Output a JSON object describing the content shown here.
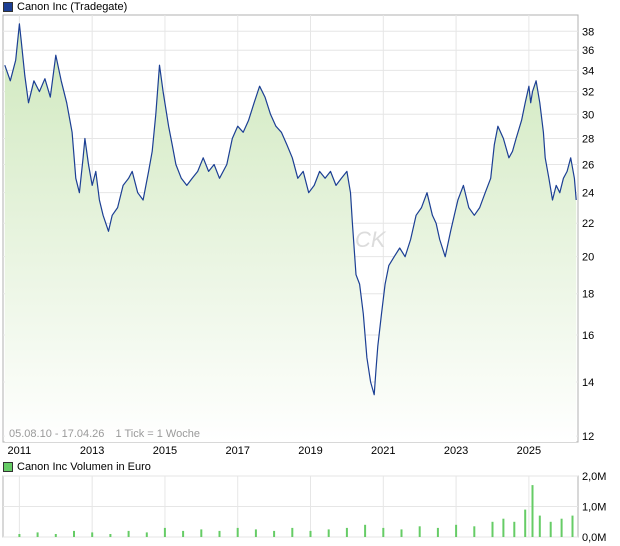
{
  "legend": {
    "price_label": "Canon Inc (Tradegate)",
    "price_color": "#1c3f94",
    "volume_label": "Canon Inc Volumen in Euro",
    "volume_color": "#66cc66"
  },
  "footnote": {
    "range": "05.08.10 - 17.04.26",
    "tick": "1 Tick = 1 Woche"
  },
  "watermark": "CK",
  "chart_data": [
    {
      "type": "line",
      "series": [
        {
          "name": "Canon Inc (Tradegate)",
          "x": [
            2010.6,
            2010.75,
            2010.9,
            2011.0,
            2011.05,
            2011.15,
            2011.25,
            2011.4,
            2011.55,
            2011.7,
            2011.85,
            2012.0,
            2012.15,
            2012.3,
            2012.45,
            2012.55,
            2012.65,
            2012.75,
            2012.8,
            2012.9,
            2013.0,
            2013.1,
            2013.2,
            2013.3,
            2013.45,
            2013.55,
            2013.7,
            2013.85,
            2014.0,
            2014.1,
            2014.25,
            2014.4,
            2014.55,
            2014.65,
            2014.75,
            2014.85,
            2014.95,
            2015.1,
            2015.2,
            2015.3,
            2015.45,
            2015.6,
            2015.75,
            2015.9,
            2016.05,
            2016.2,
            2016.35,
            2016.5,
            2016.7,
            2016.85,
            2017.0,
            2017.15,
            2017.3,
            2017.45,
            2017.6,
            2017.75,
            2017.9,
            2018.05,
            2018.2,
            2018.35,
            2018.5,
            2018.65,
            2018.8,
            2018.95,
            2019.1,
            2019.25,
            2019.4,
            2019.55,
            2019.7,
            2019.85,
            2020.0,
            2020.1,
            2020.15,
            2020.25,
            2020.35,
            2020.45,
            2020.55,
            2020.65,
            2020.75,
            2020.8,
            2020.85,
            2020.95,
            2021.05,
            2021.15,
            2021.3,
            2021.45,
            2021.6,
            2021.75,
            2021.9,
            2022.05,
            2022.2,
            2022.35,
            2022.45,
            2022.55,
            2022.7,
            2022.85,
            2022.95,
            2023.05,
            2023.2,
            2023.35,
            2023.5,
            2023.65,
            2023.8,
            2023.95,
            2024.05,
            2024.15,
            2024.3,
            2024.45,
            2024.55,
            2024.65,
            2024.8,
            2024.9,
            2025.0,
            2025.05,
            2025.1,
            2025.2,
            2025.3,
            2025.4,
            2025.45,
            2025.55,
            2025.65,
            2025.75,
            2025.85,
            2025.95,
            2026.05,
            2026.15,
            2026.25,
            2026.3
          ],
          "y": [
            34.5,
            33.0,
            35.0,
            38.8,
            37.0,
            33.5,
            31.0,
            33.0,
            32.0,
            33.2,
            31.5,
            35.5,
            33.0,
            31.0,
            28.5,
            25.0,
            24.0,
            26.5,
            28.0,
            26.0,
            24.5,
            25.5,
            23.5,
            22.5,
            21.5,
            22.5,
            23.0,
            24.5,
            25.0,
            25.5,
            24.0,
            23.5,
            25.5,
            27.0,
            30.0,
            34.5,
            32.0,
            29.0,
            27.5,
            26.0,
            25.0,
            24.5,
            25.0,
            25.5,
            26.5,
            25.5,
            26.0,
            25.0,
            26.0,
            28.0,
            29.0,
            28.5,
            29.5,
            31.0,
            32.5,
            31.5,
            30.0,
            29.0,
            28.5,
            27.5,
            26.5,
            25.0,
            25.5,
            24.0,
            24.5,
            25.5,
            25.0,
            25.5,
            24.5,
            25.0,
            25.5,
            24.0,
            22.0,
            19.0,
            18.5,
            17.0,
            15.0,
            14.0,
            13.5,
            14.5,
            15.5,
            17.0,
            18.5,
            19.5,
            20.0,
            20.5,
            20.0,
            21.0,
            22.5,
            23.0,
            24.0,
            22.5,
            22.0,
            21.0,
            20.0,
            21.5,
            22.5,
            23.5,
            24.5,
            23.0,
            22.5,
            23.0,
            24.0,
            25.0,
            27.5,
            29.0,
            28.0,
            26.5,
            27.0,
            28.0,
            29.5,
            31.0,
            32.5,
            31.0,
            32.0,
            33.0,
            31.0,
            28.5,
            26.5,
            25.0,
            23.5,
            24.5,
            24.0,
            25.0,
            25.5,
            26.5,
            25.0,
            23.5
          ]
        }
      ],
      "xlim": [
        2010.55,
        2026.35
      ],
      "ylim": [
        11.8,
        39.8
      ],
      "y_scale": "log",
      "x_ticks": [
        "2011",
        "2013",
        "2015",
        "2017",
        "2019",
        "2021",
        "2023",
        "2025"
      ],
      "x_tick_values": [
        2011,
        2013,
        2015,
        2017,
        2019,
        2021,
        2023,
        2025
      ],
      "y_ticks": [
        "12",
        "14",
        "16",
        "18",
        "20",
        "22",
        "24",
        "26",
        "28",
        "30",
        "32",
        "34",
        "36",
        "38"
      ],
      "y_tick_values": [
        12,
        14,
        16,
        18,
        20,
        22,
        24,
        26,
        28,
        30,
        32,
        34,
        36,
        38
      ],
      "grid": true,
      "area_fill": true,
      "legend_position": "top-left"
    },
    {
      "type": "bar",
      "series": [
        {
          "name": "Canon Inc Volumen in Euro",
          "x": [
            2011.0,
            2011.5,
            2012.0,
            2012.5,
            2013.0,
            2013.5,
            2014.0,
            2014.5,
            2015.0,
            2015.5,
            2016.0,
            2016.5,
            2017.0,
            2017.5,
            2018.0,
            2018.5,
            2019.0,
            2019.5,
            2020.0,
            2020.5,
            2021.0,
            2021.5,
            2022.0,
            2022.5,
            2023.0,
            2023.5,
            2024.0,
            2024.3,
            2024.6,
            2024.9,
            2025.1,
            2025.3,
            2025.6,
            2025.9,
            2026.2
          ],
          "y": [
            0.1,
            0.15,
            0.1,
            0.2,
            0.15,
            0.1,
            0.2,
            0.15,
            0.3,
            0.2,
            0.25,
            0.2,
            0.3,
            0.25,
            0.2,
            0.3,
            0.2,
            0.25,
            0.3,
            0.4,
            0.3,
            0.25,
            0.35,
            0.3,
            0.4,
            0.35,
            0.5,
            0.6,
            0.5,
            0.9,
            1.7,
            0.7,
            0.5,
            0.6,
            0.7
          ]
        }
      ],
      "xlim": [
        2010.55,
        2026.35
      ],
      "ylim": [
        0,
        2.0
      ],
      "y_ticks": [
        "0,0M",
        "1,0M",
        "2,0M"
      ],
      "y_tick_values": [
        0,
        1.0,
        2.0
      ],
      "grid": true,
      "legend_position": "top-left"
    }
  ]
}
